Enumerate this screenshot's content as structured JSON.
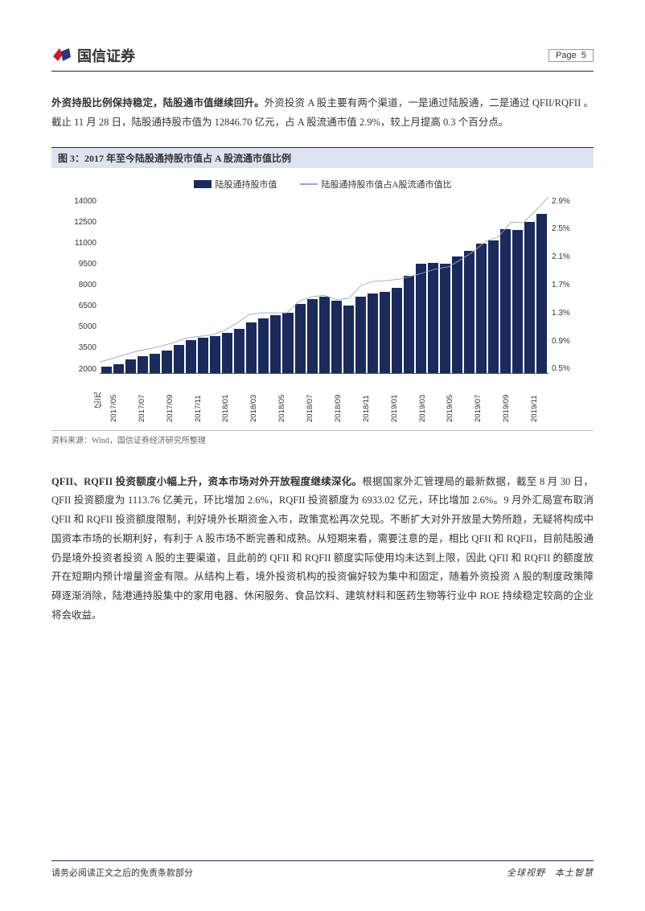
{
  "brand": "国信证券",
  "page_label": "Page",
  "page_number": "5",
  "para1_bold": "外资持股比例保持稳定，陆股通市值继续回升。",
  "para1_rest": "外资投资 A 股主要有两个渠道，一是通过陆股通，二是通过 QFII/RQFII 。截止 11 月 28 日，陆股通持股市值为 12846.70 亿元，占 A 股流通市值 2.9%，较上月提高 0.3 个百分点。",
  "figure_caption": "图 3：2017 年至今陆股通持股市值占 A 股流通市值比例",
  "legend_bar": "陆股通持股市值",
  "legend_line": "陆股通持股市值占A股流通市值比",
  "chart": {
    "y_left_ticks": [
      "14000",
      "12500",
      "11000",
      "9500",
      "8000",
      "6500",
      "5000",
      "3500",
      "2000"
    ],
    "y_right_ticks": [
      "2.9%",
      "2.5%",
      "2.1%",
      "1.7%",
      "1.3%",
      "0.9%",
      "0.5%"
    ],
    "y_unit": "亿元",
    "x_labels": [
      "2017/05",
      "2017/07",
      "2017/09",
      "2017/11",
      "2018/01",
      "2018/03",
      "2018/05",
      "2018/07",
      "2018/09",
      "2018/11",
      "2019/01",
      "2019/03",
      "2019/05",
      "2019/07",
      "2019/09",
      "2019/11"
    ],
    "bar_max": 14000,
    "bar_min": 2000,
    "bar_values": [
      2400,
      2600,
      2900,
      3100,
      3300,
      3500,
      3900,
      4200,
      4400,
      4500,
      4700,
      5000,
      5400,
      5700,
      5900,
      6100,
      6700,
      7000,
      7200,
      6900,
      6600,
      7200,
      7400,
      7500,
      7800,
      8600,
      9400,
      9500,
      9400,
      9900,
      10300,
      10800,
      11000,
      11800,
      11700,
      12300,
      12850
    ],
    "bar_color": "#1a2a5c",
    "line_min": 0.5,
    "line_max": 2.9,
    "line_values": [
      0.65,
      0.7,
      0.75,
      0.8,
      0.83,
      0.87,
      0.92,
      0.98,
      1.0,
      1.02,
      1.08,
      1.18,
      1.3,
      1.32,
      1.32,
      1.32,
      1.48,
      1.54,
      1.56,
      1.5,
      1.52,
      1.7,
      1.75,
      1.76,
      1.78,
      1.82,
      1.87,
      1.92,
      1.95,
      2.05,
      2.16,
      2.3,
      2.36,
      2.56,
      2.55,
      2.72,
      2.9
    ],
    "line_color": "#9aa5c2"
  },
  "source": "资料来源：Wind，国信证券经济研究所整理",
  "para2_bold": "QFII、RQFII 投资额度小幅上升，资本市场对外开放程度继续深化。",
  "para2_rest": "根据国家外汇管理局的最新数据，截至 8 月 30 日，QFII 投资额度为 1113.76 亿美元，环比增加 2.6%，RQFII 投资额度为 6933.02 亿元，环比增加 2.6%。9 月外汇局宣布取消 QFII 和 RQFII 投资额度限制，利好境外长期资金入市，政策宽松再次兑现。不断扩大对外开放是大势所趋，无疑将构成中国资本市场的长期利好，有利于 A 股市场不断完善和成熟。从短期来看，需要注意的是，相比 QFII 和 RQFII，目前陆股通仍是境外投资者投资 A 股的主要渠道，且此前的 QFII 和 RQFII 额度实际使用均未达到上限，因此 QFII 和 RQFII 的额度放开在短期内预计增量资金有限。从结构上看，境外投资机构的投资偏好较为集中和固定，随着外资投资 A 股的制度政策障碍逐渐消除，陆港通持股集中的家用电器、休闲服务、食品饮料、建筑材料和医药生物等行业中 ROE 持续稳定较高的企业将会收益。",
  "footer_left": "请务必阅读正文之后的免责条款部分",
  "footer_right": "全球视野　本土智慧"
}
